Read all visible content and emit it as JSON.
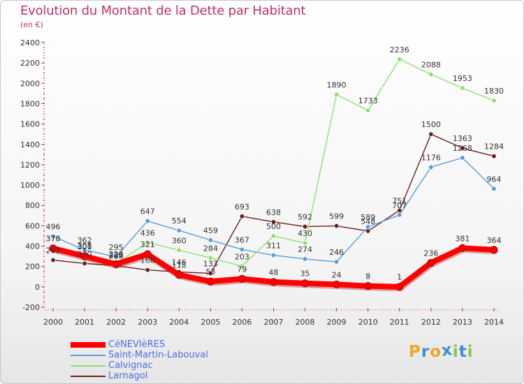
{
  "chart_data": {
    "type": "line",
    "title": "Evolution du Montant de la Dette par Habitant",
    "subtitle": "(en €)",
    "xlabel": "",
    "ylabel": "",
    "x": [
      2000,
      2001,
      2002,
      2003,
      2004,
      2005,
      2006,
      2007,
      2008,
      2009,
      2010,
      2011,
      2012,
      2013,
      2014
    ],
    "yticks": [
      -200,
      0,
      200,
      400,
      600,
      800,
      1000,
      1200,
      1400,
      1600,
      1800,
      2000,
      2200,
      2400
    ],
    "ylim": [
      -200,
      2400
    ],
    "grid": false,
    "legend_position": "bottom-left",
    "series": [
      {
        "name": "CéNEVIèRES",
        "color": "#ff0000",
        "values": [
          378,
          301,
          223,
          321,
          118,
          53,
          79,
          48,
          35,
          24,
          8,
          1,
          236,
          381,
          364
        ]
      },
      {
        "name": "Saint-Martin-Labouval",
        "color": "#5b9bd5",
        "values": [
          496,
          362,
          295,
          647,
          554,
          459,
          367,
          311,
          274,
          246,
          589,
          707,
          1176,
          1268,
          964
        ]
      },
      {
        "name": "Calvignac",
        "color": "#8ee06e",
        "values": [
          378,
          308,
          226,
          436,
          360,
          284,
          203,
          500,
          430,
          1890,
          1733,
          2236,
          2088,
          1953,
          1830
        ]
      },
      {
        "name": "Larnagol",
        "color": "#6b1e1e",
        "values": [
          263,
          230,
          208,
          166,
          146,
          133,
          693,
          638,
          592,
          599,
          548,
          751,
          1500,
          1363,
          1284
        ]
      }
    ]
  },
  "brand": {
    "letters": [
      "P",
      "r",
      "o",
      "x",
      "i",
      "t",
      "i"
    ],
    "colors": [
      "#f2a623",
      "#3a8fd8",
      "#f2a623",
      "#3a8fd8",
      "#8dc63f",
      "#3a8fd8",
      "#8dc63f"
    ]
  }
}
